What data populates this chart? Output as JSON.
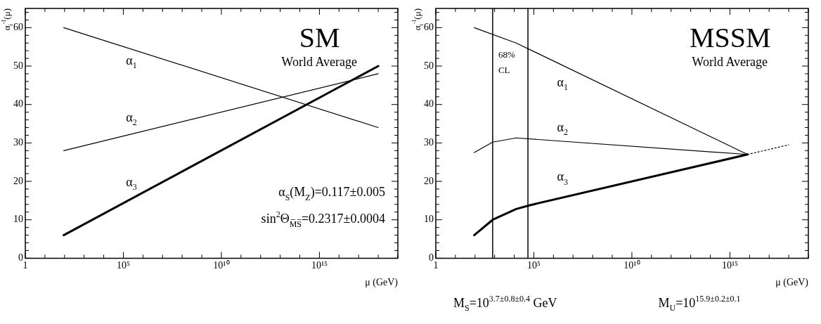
{
  "chart_data": [
    {
      "type": "line",
      "title": "SM",
      "subtitle": "World Average",
      "xlabel": "μ (GeV)",
      "ylabel": "α$_{i}$$^{-1}$(μ)",
      "log": "x",
      "xlim": [
        1,
        1e+19
      ],
      "xticks": [
        1,
        {
          "value": 100000,
          "label": "10⁵"
        },
        {
          "value": 10000000000.0,
          "label": "10¹⁰"
        },
        {
          "value": 1000000000000000.0,
          "label": "10¹⁵"
        }
      ],
      "ylim": [
        0,
        65
      ],
      "yticks": [
        0,
        10,
        20,
        30,
        40,
        50,
        60
      ],
      "grid": false,
      "legend": false,
      "marker": "none",
      "line_style": "solid",
      "series": [
        {
          "name": "α$_{1}$",
          "color": "#000000",
          "x": [
            91,
            1e+18
          ],
          "values": [
            60,
            34
          ]
        },
        {
          "name": "α$_{2}$",
          "color": "#000000",
          "x": [
            91,
            1e+18
          ],
          "values": [
            28,
            48
          ]
        },
        {
          "name": "α$_{3}$",
          "color": "#000000",
          "x": [
            91,
            1e+18
          ],
          "values": [
            6,
            50
          ]
        }
      ],
      "annotations": [
        "α$_{S}$(M$_{Z}$)=0.117±0.005",
        "sin$^{2}$Θ$_{M̅S̅}$=0.2317±0.0004"
      ]
    },
    {
      "type": "line",
      "title": "MSSM",
      "subtitle": "World Average",
      "xlabel": "μ (GeV)",
      "ylabel": "α$_{i}$$^{-1}$(μ)",
      "log": "x",
      "xlim": [
        1,
        1e+19
      ],
      "xticks": [
        1,
        {
          "value": 100000,
          "label": "10⁵"
        },
        {
          "value": 10000000000.0,
          "label": "10¹⁰"
        },
        {
          "value": 1000000000000000.0,
          "label": "10¹⁵"
        }
      ],
      "ylim": [
        0,
        65
      ],
      "yticks": [
        0,
        10,
        20,
        30,
        40,
        50,
        60
      ],
      "grid": false,
      "legend": false,
      "marker": "none",
      "line_style": "solid",
      "series": [
        {
          "name": "α$_{1}$",
          "color": "#000000",
          "x": [
            91,
            12600,
            7900000000000000.0
          ],
          "values": [
            60,
            56,
            27
          ]
        },
        {
          "name": "α$_{2}$",
          "color": "#000000",
          "x": [
            91,
            794,
            12600,
            7900000000000000.0
          ],
          "values": [
            27.5,
            30.2,
            31.3,
            27
          ]
        },
        {
          "name": "α$_{3}$",
          "color": "#000000",
          "x": [
            91,
            794,
            12600,
            63000,
            7900000000000000.0
          ],
          "values": [
            6,
            10,
            12.8,
            13.8,
            27
          ]
        },
        {
          "color": "#000000",
          "x": [
            7900000000000000.0,
            1e+18
          ],
          "values": [
            27,
            29.5
          ],
          "line_style": "dotted"
        }
      ],
      "ref_lines": [
        {
          "axis": "x",
          "value": 794,
          "color": "#000000",
          "label": "68% CL"
        },
        {
          "axis": "x",
          "value": 50000,
          "color": "#000000"
        }
      ],
      "annotations": [
        "M$_{S}$=10$^{3.7±0.8±0.4}$ GeV",
        "M$_{U}$=10$^{15.9±0.2±0.1}$"
      ]
    }
  ]
}
